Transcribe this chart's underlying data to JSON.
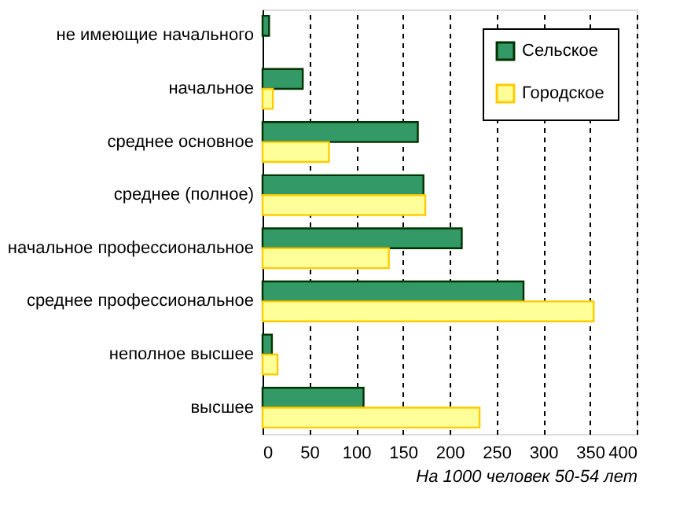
{
  "chart_data": {
    "type": "bar",
    "orientation": "horizontal",
    "categories": [
      "не имеющие начального",
      "начальное",
      "среднее основное",
      "среднее (полное)",
      "начальное профессиональное",
      "среднее профессиональное",
      "неполное высшее",
      "высшее"
    ],
    "series": [
      {
        "name": "Сельское",
        "color": "#339966",
        "values": [
          7,
          43,
          166,
          172,
          213,
          279,
          10,
          108
        ]
      },
      {
        "name": "Городское",
        "color": "#ffff99",
        "values": [
          null,
          11,
          71,
          174,
          135,
          354,
          16,
          232
        ]
      }
    ],
    "xlabel": "На 1000 человек 50-54 лет",
    "xlim": [
      0,
      400
    ],
    "xticks": [
      0,
      50,
      100,
      150,
      200,
      250,
      300,
      350,
      400
    ],
    "grid": "x",
    "line_style": "dashed",
    "legend": "top right"
  }
}
